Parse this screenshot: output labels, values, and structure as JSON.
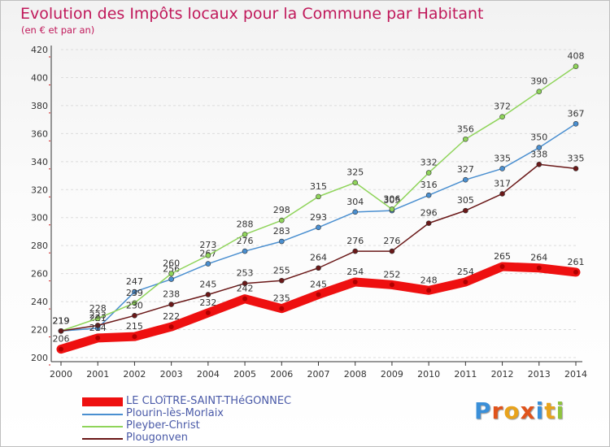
{
  "title": "Evolution des Impôts locaux pour la Commune par Habitant",
  "subtitle": "(en € et par an)",
  "logo": {
    "letters": [
      "P",
      "r",
      "o",
      "x",
      "i",
      "t",
      "i"
    ],
    "colors": [
      "#3a8fd8",
      "#e0531b",
      "#e8a31c",
      "#e0531b",
      "#3a8fd8",
      "#e8a31c",
      "#8fc43e"
    ]
  },
  "chart_data": {
    "type": "line",
    "title": "Evolution des Impôts locaux pour la Commune par Habitant",
    "subtitle": "(en € et par an)",
    "x": [
      "2000",
      "2001",
      "2002",
      "2003",
      "2004",
      "2005",
      "2006",
      "2007",
      "2008",
      "2009",
      "2010",
      "2011",
      "2012",
      "2013",
      "2014"
    ],
    "ylim": [
      200,
      420
    ],
    "yticks": [
      200,
      220,
      240,
      260,
      280,
      300,
      320,
      340,
      360,
      380,
      400,
      420
    ],
    "grid": "horizontal",
    "legend_position": "bottom-left",
    "series": [
      {
        "name": "LE CLOîTRE-SAINT-THéGONNEC",
        "color": "#ee1010",
        "emphasis": true,
        "values": [
          206,
          214,
          215,
          222,
          232,
          242,
          235,
          245,
          254,
          252,
          248,
          254,
          265,
          264,
          261
        ]
      },
      {
        "name": "Plourin-lès-Morlaix",
        "color": "#4a8fd0",
        "emphasis": false,
        "values": [
          219,
          221,
          247,
          256,
          267,
          276,
          283,
          293,
          304,
          305,
          316,
          327,
          335,
          350,
          367
        ]
      },
      {
        "name": "Pleyber-Christ",
        "color": "#8fd45a",
        "emphasis": false,
        "values": [
          219,
          228,
          239,
          260,
          273,
          288,
          298,
          315,
          325,
          306,
          332,
          356,
          372,
          390,
          408
        ]
      },
      {
        "name": "Plougonven",
        "color": "#6a1818",
        "emphasis": false,
        "values": [
          219,
          223,
          230,
          238,
          245,
          253,
          255,
          264,
          276,
          276,
          296,
          305,
          317,
          338,
          335
        ]
      }
    ]
  }
}
